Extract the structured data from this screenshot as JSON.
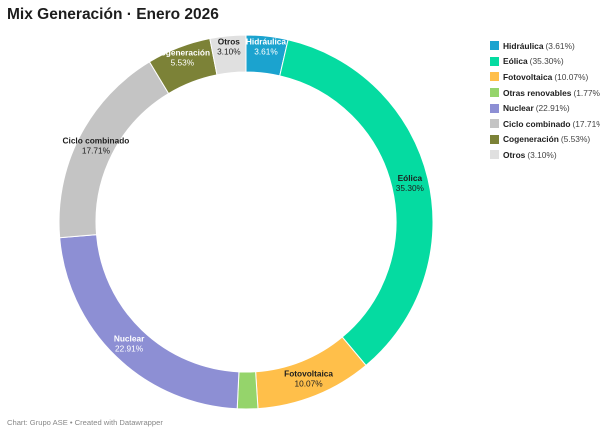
{
  "chart_data": {
    "type": "pie",
    "title": "Mix Generación · Enero 2026",
    "donut": true,
    "slices": [
      {
        "name": "Hidráulica",
        "value": 3.61,
        "label": "3.61%",
        "legend_pct": "(3.61%)",
        "color": "#1ba3cf",
        "text_color": "#ffffff"
      },
      {
        "name": "Eólica",
        "value": 35.3,
        "label": "35.30%",
        "legend_pct": "(35.30%)",
        "color": "#05dba1",
        "text_color": "#1d1d1d"
      },
      {
        "name": "Fotovoltaica",
        "value": 10.07,
        "label": "10.07%",
        "legend_pct": "(10.07%)",
        "color": "#ffbf4a",
        "text_color": "#1d1d1d"
      },
      {
        "name": "Otras renovables",
        "value": 1.77,
        "label": "1.77%",
        "legend_pct": "(1.77%)",
        "color": "#95d46b",
        "text_color": "#1d1d1d"
      },
      {
        "name": "Nuclear",
        "value": 22.91,
        "label": "22.91%",
        "legend_pct": "(22.91%)",
        "color": "#8d8fd4",
        "text_color": "#ffffff"
      },
      {
        "name": "Ciclo combinado",
        "value": 17.71,
        "label": "17.71%",
        "legend_pct": "(17.71%)",
        "color": "#c4c4c4",
        "text_color": "#1d1d1d"
      },
      {
        "name": "Cogeneración",
        "value": 5.53,
        "label": "5.53%",
        "legend_pct": "(5.53%)",
        "color": "#7c8237",
        "text_color": "#ffffff"
      },
      {
        "name": "Otros",
        "value": 3.1,
        "label": "3.10%",
        "legend_pct": "(3.10%)",
        "color": "#e0e0e0",
        "text_color": "#1d1d1d"
      }
    ],
    "legend_position": "right"
  },
  "footer": "Chart: Grupo ASE • Created with Datawrapper"
}
